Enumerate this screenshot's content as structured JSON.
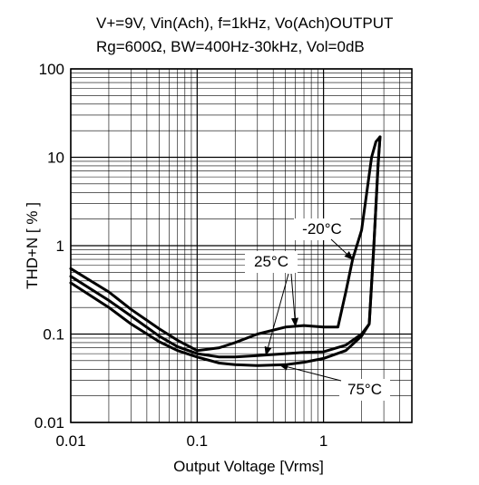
{
  "title_lines": [
    "V+=9V, Vin(Ach), f=1kHz, Vo(Ach)OUTPUT",
    "Rg=600Ω, BW=400Hz-30kHz, Vol=0dB"
  ],
  "chart_data": {
    "type": "line",
    "xscale": "log",
    "yscale": "log",
    "xlim": [
      0.01,
      5
    ],
    "ylim": [
      0.01,
      100
    ],
    "xlabel": "Output Voltage   [Vrms]",
    "ylabel": "THD+N   [ % ]",
    "x_ticks": [
      0.01,
      0.1,
      1
    ],
    "x_tick_labels": [
      "0.01",
      "0.1",
      "1"
    ],
    "y_ticks": [
      0.01,
      0.1,
      1,
      10,
      100
    ],
    "y_tick_labels": [
      "0.01",
      "0.1",
      "1",
      "10",
      "100"
    ],
    "grid": true,
    "series": [
      {
        "name": "-20°C",
        "x": [
          0.01,
          0.02,
          0.03,
          0.05,
          0.07,
          0.1,
          0.15,
          0.2,
          0.3,
          0.5,
          0.7,
          1.0,
          1.3,
          1.5,
          1.7,
          2.0,
          2.2,
          2.4,
          2.6,
          2.8
        ],
        "y": [
          0.55,
          0.3,
          0.19,
          0.115,
          0.085,
          0.065,
          0.07,
          0.08,
          0.1,
          0.12,
          0.125,
          0.12,
          0.12,
          0.3,
          0.7,
          1.5,
          4.0,
          10.0,
          15.0,
          17.0
        ]
      },
      {
        "name": "25°C",
        "x": [
          0.01,
          0.02,
          0.03,
          0.05,
          0.07,
          0.1,
          0.15,
          0.2,
          0.3,
          0.5,
          0.7,
          1.0,
          1.5,
          2.0,
          2.3,
          2.5,
          2.7,
          2.8
        ],
        "y": [
          0.45,
          0.24,
          0.16,
          0.095,
          0.072,
          0.06,
          0.055,
          0.055,
          0.057,
          0.06,
          0.062,
          0.063,
          0.075,
          0.1,
          0.13,
          1.0,
          8.0,
          17.0
        ]
      },
      {
        "name": "75°C",
        "x": [
          0.01,
          0.02,
          0.03,
          0.05,
          0.07,
          0.1,
          0.15,
          0.2,
          0.3,
          0.5,
          0.7,
          1.0,
          1.5,
          2.0,
          2.3,
          2.5,
          2.7,
          2.8
        ],
        "y": [
          0.38,
          0.2,
          0.13,
          0.082,
          0.065,
          0.055,
          0.047,
          0.045,
          0.044,
          0.045,
          0.048,
          0.053,
          0.065,
          0.095,
          0.13,
          1.0,
          8.0,
          17.0
        ]
      }
    ],
    "annotations": [
      {
        "text": "-20°C",
        "series": "-20°C"
      },
      {
        "text": "25°C",
        "series": "25°C"
      },
      {
        "text": "75°C",
        "series": "75°C"
      }
    ]
  }
}
